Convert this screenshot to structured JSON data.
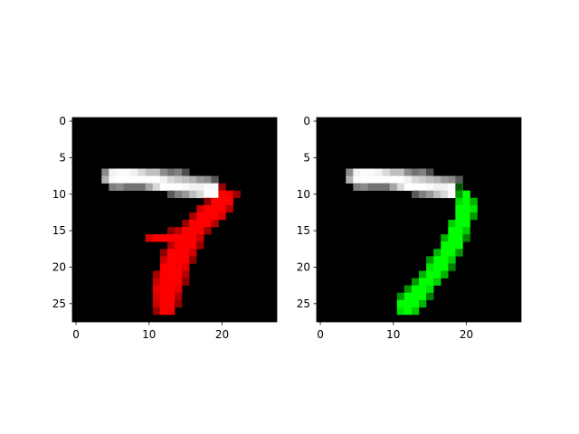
{
  "chart_data": [
    {
      "type": "heatmap",
      "title": "",
      "xlabel": "",
      "ylabel": "",
      "xlim": [
        -0.5,
        27.5
      ],
      "ylim": [
        27.5,
        -0.5
      ],
      "grid": false,
      "xticks": [
        0,
        10,
        20
      ],
      "yticks": [
        0,
        5,
        10,
        15,
        20,
        25
      ],
      "xtick_labels": [
        "0",
        "10",
        "20"
      ],
      "ytick_labels": [
        "0",
        "5",
        "10",
        "15",
        "20",
        "25"
      ],
      "background_color": "#000000",
      "overlay_color": "#ff0000",
      "rows": 28,
      "cols": 28,
      "gray_pixels": [
        [
          7,
          4,
          0.55
        ],
        [
          7,
          5,
          0.95
        ],
        [
          7,
          6,
          0.98
        ],
        [
          7,
          7,
          0.98
        ],
        [
          7,
          8,
          0.95
        ],
        [
          7,
          9,
          0.85
        ],
        [
          7,
          10,
          0.75
        ],
        [
          7,
          11,
          0.75
        ],
        [
          7,
          12,
          0.55
        ],
        [
          7,
          13,
          0.45
        ],
        [
          7,
          14,
          0.5
        ],
        [
          7,
          15,
          0.3
        ],
        [
          8,
          4,
          0.7
        ],
        [
          8,
          5,
          0.98
        ],
        [
          8,
          6,
          1
        ],
        [
          8,
          7,
          1
        ],
        [
          8,
          8,
          1
        ],
        [
          8,
          9,
          1
        ],
        [
          8,
          10,
          1
        ],
        [
          8,
          11,
          1
        ],
        [
          8,
          12,
          0.95
        ],
        [
          8,
          13,
          0.85
        ],
        [
          8,
          14,
          0.8
        ],
        [
          8,
          15,
          0.75
        ],
        [
          8,
          16,
          0.7
        ],
        [
          8,
          17,
          0.6
        ],
        [
          8,
          18,
          0.55
        ],
        [
          8,
          19,
          0.35
        ],
        [
          9,
          5,
          0.5
        ],
        [
          9,
          6,
          0.55
        ],
        [
          9,
          7,
          0.45
        ],
        [
          9,
          8,
          0.45
        ],
        [
          9,
          9,
          0.45
        ],
        [
          9,
          10,
          0.65
        ],
        [
          9,
          11,
          0.85
        ],
        [
          9,
          12,
          1
        ],
        [
          9,
          13,
          1
        ],
        [
          9,
          14,
          1
        ],
        [
          9,
          15,
          0.98
        ],
        [
          9,
          16,
          0.95
        ],
        [
          9,
          17,
          0.95
        ],
        [
          9,
          18,
          0.98
        ],
        [
          9,
          19,
          0.98
        ],
        [
          10,
          13,
          0.35
        ],
        [
          10,
          14,
          0.5
        ],
        [
          10,
          15,
          0.6
        ],
        [
          10,
          16,
          0.75
        ],
        [
          10,
          17,
          0.85
        ],
        [
          10,
          18,
          1
        ],
        [
          10,
          19,
          1
        ]
      ],
      "overlay_pixels": [
        [
          9,
          20,
          0.6
        ],
        [
          10,
          20,
          1
        ],
        [
          10,
          21,
          0.95
        ],
        [
          10,
          22,
          0.6
        ],
        [
          11,
          18,
          0.55
        ],
        [
          11,
          19,
          1
        ],
        [
          11,
          20,
          1
        ],
        [
          11,
          21,
          1
        ],
        [
          12,
          17,
          0.8
        ],
        [
          12,
          18,
          1
        ],
        [
          12,
          19,
          1
        ],
        [
          12,
          20,
          1
        ],
        [
          12,
          21,
          0.7
        ],
        [
          13,
          16,
          0.65
        ],
        [
          13,
          17,
          1
        ],
        [
          13,
          18,
          1
        ],
        [
          13,
          19,
          1
        ],
        [
          13,
          20,
          0.85
        ],
        [
          14,
          15,
          0.6
        ],
        [
          14,
          16,
          1
        ],
        [
          14,
          17,
          1
        ],
        [
          14,
          18,
          1
        ],
        [
          14,
          19,
          0.7
        ],
        [
          15,
          13,
          0.55
        ],
        [
          15,
          14,
          0.75
        ],
        [
          15,
          15,
          1
        ],
        [
          15,
          16,
          1
        ],
        [
          15,
          17,
          1
        ],
        [
          15,
          18,
          0.6
        ],
        [
          16,
          10,
          0.85
        ],
        [
          16,
          11,
          1
        ],
        [
          16,
          12,
          1
        ],
        [
          16,
          13,
          1
        ],
        [
          16,
          14,
          1
        ],
        [
          16,
          15,
          1
        ],
        [
          16,
          16,
          1
        ],
        [
          16,
          17,
          0.8
        ],
        [
          17,
          13,
          0.7
        ],
        [
          17,
          14,
          1
        ],
        [
          17,
          15,
          1
        ],
        [
          17,
          16,
          1
        ],
        [
          17,
          17,
          0.6
        ],
        [
          18,
          12,
          0.55
        ],
        [
          18,
          13,
          1
        ],
        [
          18,
          14,
          1
        ],
        [
          18,
          15,
          1
        ],
        [
          18,
          16,
          0.8
        ],
        [
          19,
          12,
          0.8
        ],
        [
          19,
          13,
          1
        ],
        [
          19,
          14,
          1
        ],
        [
          19,
          15,
          1
        ],
        [
          19,
          16,
          0.55
        ],
        [
          20,
          12,
          1
        ],
        [
          20,
          13,
          1
        ],
        [
          20,
          14,
          1
        ],
        [
          20,
          15,
          0.9
        ],
        [
          21,
          11,
          0.65
        ],
        [
          21,
          12,
          1
        ],
        [
          21,
          13,
          1
        ],
        [
          21,
          14,
          1
        ],
        [
          21,
          15,
          0.7
        ],
        [
          22,
          11,
          0.8
        ],
        [
          22,
          12,
          1
        ],
        [
          22,
          13,
          1
        ],
        [
          22,
          14,
          1
        ],
        [
          22,
          15,
          0.55
        ],
        [
          23,
          11,
          0.9
        ],
        [
          23,
          12,
          1
        ],
        [
          23,
          13,
          1
        ],
        [
          23,
          14,
          0.9
        ],
        [
          24,
          11,
          0.85
        ],
        [
          24,
          12,
          1
        ],
        [
          24,
          13,
          1
        ],
        [
          24,
          14,
          0.7
        ],
        [
          25,
          11,
          0.8
        ],
        [
          25,
          12,
          1
        ],
        [
          25,
          13,
          1
        ],
        [
          25,
          14,
          0.55
        ],
        [
          26,
          11,
          0.6
        ],
        [
          26,
          12,
          1
        ],
        [
          26,
          13,
          0.95
        ]
      ]
    },
    {
      "type": "heatmap",
      "title": "",
      "xlabel": "",
      "ylabel": "",
      "xlim": [
        -0.5,
        27.5
      ],
      "ylim": [
        27.5,
        -0.5
      ],
      "grid": false,
      "xticks": [
        0,
        10,
        20
      ],
      "yticks": [
        0,
        5,
        10,
        15,
        20,
        25
      ],
      "xtick_labels": [
        "0",
        "10",
        "20"
      ],
      "ytick_labels": [
        "0",
        "5",
        "10",
        "15",
        "20",
        "25"
      ],
      "background_color": "#000000",
      "overlay_color": "#00ff00",
      "rows": 28,
      "cols": 28,
      "gray_pixels": [
        [
          7,
          4,
          0.55
        ],
        [
          7,
          5,
          0.95
        ],
        [
          7,
          6,
          0.98
        ],
        [
          7,
          7,
          0.98
        ],
        [
          7,
          8,
          0.95
        ],
        [
          7,
          9,
          0.85
        ],
        [
          7,
          10,
          0.75
        ],
        [
          7,
          11,
          0.75
        ],
        [
          7,
          12,
          0.55
        ],
        [
          7,
          13,
          0.45
        ],
        [
          7,
          14,
          0.5
        ],
        [
          7,
          15,
          0.3
        ],
        [
          8,
          4,
          0.7
        ],
        [
          8,
          5,
          0.98
        ],
        [
          8,
          6,
          1
        ],
        [
          8,
          7,
          1
        ],
        [
          8,
          8,
          1
        ],
        [
          8,
          9,
          1
        ],
        [
          8,
          10,
          1
        ],
        [
          8,
          11,
          1
        ],
        [
          8,
          12,
          0.95
        ],
        [
          8,
          13,
          0.85
        ],
        [
          8,
          14,
          0.8
        ],
        [
          8,
          15,
          0.75
        ],
        [
          8,
          16,
          0.7
        ],
        [
          8,
          17,
          0.6
        ],
        [
          8,
          18,
          0.55
        ],
        [
          8,
          19,
          0.35
        ],
        [
          9,
          5,
          0.5
        ],
        [
          9,
          6,
          0.55
        ],
        [
          9,
          7,
          0.45
        ],
        [
          9,
          8,
          0.45
        ],
        [
          9,
          9,
          0.45
        ],
        [
          9,
          10,
          0.65
        ],
        [
          9,
          11,
          0.85
        ],
        [
          9,
          12,
          1
        ],
        [
          9,
          13,
          1
        ],
        [
          9,
          14,
          1
        ],
        [
          9,
          15,
          0.98
        ],
        [
          9,
          16,
          0.95
        ],
        [
          9,
          17,
          0.95
        ],
        [
          9,
          18,
          0.98
        ],
        [
          9,
          19,
          0.98
        ],
        [
          10,
          13,
          0.35
        ],
        [
          10,
          14,
          0.5
        ],
        [
          10,
          15,
          0.6
        ],
        [
          10,
          16,
          0.75
        ],
        [
          10,
          17,
          0.85
        ],
        [
          10,
          18,
          1
        ],
        [
          10,
          19,
          1
        ]
      ],
      "overlay_pixels": [
        [
          9,
          19,
          0.35
        ],
        [
          10,
          19,
          0.6
        ],
        [
          10,
          20,
          1
        ],
        [
          11,
          19,
          0.85
        ],
        [
          11,
          20,
          1
        ],
        [
          11,
          21,
          0.7
        ],
        [
          12,
          19,
          1
        ],
        [
          12,
          20,
          1
        ],
        [
          12,
          21,
          0.9
        ],
        [
          13,
          19,
          1
        ],
        [
          13,
          20,
          1
        ],
        [
          13,
          21,
          0.6
        ],
        [
          14,
          18,
          0.8
        ],
        [
          14,
          19,
          1
        ],
        [
          14,
          20,
          1
        ],
        [
          15,
          18,
          1
        ],
        [
          15,
          19,
          1
        ],
        [
          15,
          20,
          0.8
        ],
        [
          16,
          17,
          0.7
        ],
        [
          16,
          18,
          1
        ],
        [
          16,
          19,
          1
        ],
        [
          16,
          20,
          0.5
        ],
        [
          17,
          17,
          1
        ],
        [
          17,
          18,
          1
        ],
        [
          17,
          19,
          1
        ],
        [
          18,
          16,
          0.7
        ],
        [
          18,
          17,
          1
        ],
        [
          18,
          18,
          1
        ],
        [
          18,
          19,
          0.6
        ],
        [
          19,
          15,
          0.6
        ],
        [
          19,
          16,
          1
        ],
        [
          19,
          17,
          1
        ],
        [
          19,
          18,
          0.8
        ],
        [
          20,
          15,
          0.9
        ],
        [
          20,
          16,
          1
        ],
        [
          20,
          17,
          1
        ],
        [
          20,
          18,
          0.5
        ],
        [
          21,
          14,
          0.7
        ],
        [
          21,
          15,
          1
        ],
        [
          21,
          16,
          1
        ],
        [
          21,
          17,
          0.7
        ],
        [
          22,
          13,
          0.6
        ],
        [
          22,
          14,
          1
        ],
        [
          22,
          15,
          1
        ],
        [
          22,
          16,
          0.8
        ],
        [
          23,
          12,
          0.6
        ],
        [
          23,
          13,
          1
        ],
        [
          23,
          14,
          1
        ],
        [
          23,
          15,
          0.9
        ],
        [
          24,
          11,
          0.6
        ],
        [
          24,
          12,
          1
        ],
        [
          24,
          13,
          1
        ],
        [
          24,
          14,
          1
        ],
        [
          24,
          15,
          0.5
        ],
        [
          25,
          11,
          1
        ],
        [
          25,
          12,
          1
        ],
        [
          25,
          13,
          1
        ],
        [
          25,
          14,
          0.7
        ],
        [
          26,
          11,
          0.9
        ],
        [
          26,
          12,
          1
        ],
        [
          26,
          13,
          0.8
        ]
      ]
    }
  ]
}
